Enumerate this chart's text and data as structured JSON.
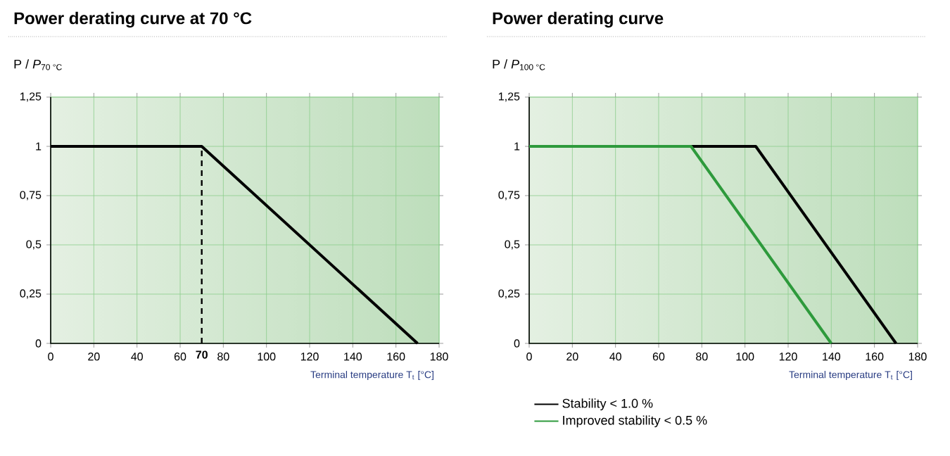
{
  "chart_data": [
    {
      "type": "line",
      "title": "Power derating curve at 70 °C",
      "ylabel": "P / *P*$_{70 °C}$",
      "xlabel": "Terminal temperature T$_{t}$ [°C]",
      "x": [
        0,
        70,
        170
      ],
      "series": [
        {
          "color": "#000000",
          "values": [
            1,
            1,
            0
          ]
        }
      ],
      "xlim": [
        0,
        180
      ],
      "xticks": [
        0,
        20,
        40,
        60,
        80,
        100,
        120,
        140,
        160,
        180
      ],
      "ylim": [
        0,
        1.25
      ],
      "yticks": [
        0,
        {
          "value": 0.25,
          "label": "0,25"
        },
        {
          "value": 0.5,
          "label": "0,5"
        },
        {
          "value": 0.75,
          "label": "0,75"
        },
        1,
        {
          "value": 1.25,
          "label": "1,25"
        }
      ],
      "ref_lines": [
        {
          "axis": "x",
          "value": 70,
          "label": "70",
          "color": "#000000",
          "line_style": "dashed"
        }
      ],
      "grid": true,
      "legend": false,
      "marker": "none",
      "line_style": "solid"
    },
    {
      "type": "line",
      "title": "Power derating curve",
      "ylabel": "P / *P*$_{100 °C}$",
      "xlabel": "Terminal temperature T$_{t}$ [°C]",
      "series": [
        {
          "name": "Stability < 1.0 %",
          "color": "#000000",
          "x": [
            0,
            105,
            170
          ],
          "values": [
            1,
            1,
            0
          ]
        },
        {
          "name": "Improved stability < 0.5 %",
          "color": "#2e9a3c",
          "x": [
            0,
            75,
            140
          ],
          "values": [
            1,
            1,
            0
          ]
        }
      ],
      "xlim": [
        0,
        180
      ],
      "xticks": [
        0,
        20,
        40,
        60,
        80,
        100,
        120,
        140,
        160,
        180
      ],
      "ylim": [
        0,
        1.25
      ],
      "yticks": [
        0,
        {
          "value": 0.25,
          "label": "0,25"
        },
        {
          "value": 0.5,
          "label": "0,5"
        },
        {
          "value": 0.75,
          "label": "0,75"
        },
        1,
        {
          "value": 1.25,
          "label": "1,25"
        }
      ],
      "grid": true,
      "legend": "bottom",
      "marker": "none",
      "line_style": "solid"
    }
  ]
}
